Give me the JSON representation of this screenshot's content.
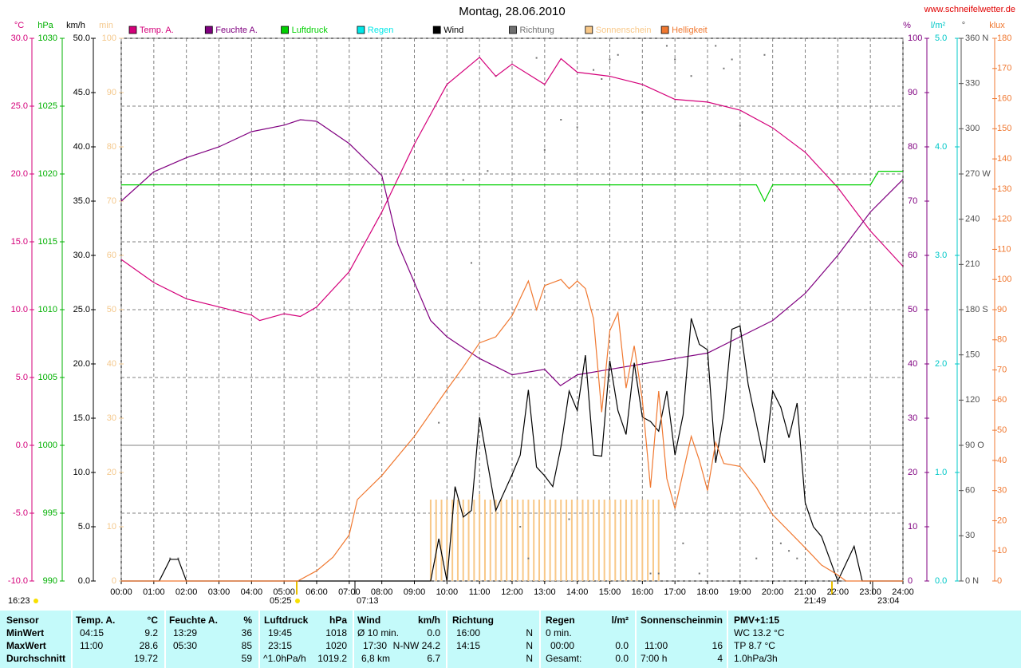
{
  "chart_data": {
    "type": "line",
    "title": "Montag, 28.06.2010",
    "source": "www.schneifelwetter.de",
    "grid": true,
    "xlim": [
      0,
      1440
    ],
    "xticks": [
      {
        "value": 0,
        "label": "00:00"
      },
      {
        "value": 60,
        "label": "01:00"
      },
      {
        "value": 120,
        "label": "02:00"
      },
      {
        "value": 180,
        "label": "03:00"
      },
      {
        "value": 240,
        "label": "04:00"
      },
      {
        "value": 300,
        "label": "05:00"
      },
      {
        "value": 360,
        "label": "06:00"
      },
      {
        "value": 420,
        "label": "07:00"
      },
      {
        "value": 480,
        "label": "08:00"
      },
      {
        "value": 540,
        "label": "09:00"
      },
      {
        "value": 600,
        "label": "10:00"
      },
      {
        "value": 660,
        "label": "11:00"
      },
      {
        "value": 720,
        "label": "12:00"
      },
      {
        "value": 780,
        "label": "13:00"
      },
      {
        "value": 840,
        "label": "14:00"
      },
      {
        "value": 900,
        "label": "15:00"
      },
      {
        "value": 960,
        "label": "16:00"
      },
      {
        "value": 1020,
        "label": "17:00"
      },
      {
        "value": 1080,
        "label": "18:00"
      },
      {
        "value": 1140,
        "label": "19:00"
      },
      {
        "value": 1200,
        "label": "20:00"
      },
      {
        "value": 1260,
        "label": "21:00"
      },
      {
        "value": 1320,
        "label": "22:00"
      },
      {
        "value": 1380,
        "label": "23:00"
      },
      {
        "value": 1440,
        "label": "24:00"
      }
    ],
    "axes": [
      {
        "unit": "°C",
        "side": "left",
        "color": "#d4007a",
        "lim": [
          -10,
          30
        ],
        "ticks": [
          {
            "value": -10,
            "label": "-10.0"
          },
          {
            "value": -5,
            "label": "-5.0"
          },
          {
            "value": 0,
            "label": "0.0"
          },
          {
            "value": 5,
            "label": "5.0"
          },
          {
            "value": 10,
            "label": "10.0"
          },
          {
            "value": 15,
            "label": "15.0"
          },
          {
            "value": 20,
            "label": "20.0"
          },
          {
            "value": 25,
            "label": "25.0"
          },
          {
            "value": 30,
            "label": "30.0"
          }
        ]
      },
      {
        "unit": "hPa",
        "side": "left",
        "color": "#00b000",
        "lim": [
          990,
          1030
        ],
        "ticks": [
          990,
          995,
          1000,
          1005,
          1010,
          1015,
          1020,
          1025,
          1030
        ]
      },
      {
        "unit": "km/h",
        "side": "left",
        "color": "#000000",
        "lim": [
          0,
          50
        ],
        "ticks": [
          {
            "value": 0,
            "label": "0.0"
          },
          {
            "value": 5,
            "label": "5.0"
          },
          {
            "value": 10,
            "label": "10.0"
          },
          {
            "value": 15,
            "label": "15.0"
          },
          {
            "value": 20,
            "label": "20.0"
          },
          {
            "value": 25,
            "label": "25.0"
          },
          {
            "value": 30,
            "label": "30.0"
          },
          {
            "value": 35,
            "label": "35.0"
          },
          {
            "value": 40,
            "label": "40.0"
          },
          {
            "value": 45,
            "label": "45.0"
          },
          {
            "value": 50,
            "label": "50.0"
          }
        ]
      },
      {
        "unit": "min",
        "side": "left",
        "color": "#f4c88c",
        "lim": [
          0,
          100
        ],
        "ticks": [
          0,
          10,
          20,
          30,
          40,
          50,
          60,
          70,
          80,
          90,
          100
        ]
      },
      {
        "unit": "%",
        "side": "right",
        "color": "#800080",
        "lim": [
          0,
          100
        ],
        "ticks": [
          0,
          10,
          20,
          30,
          40,
          50,
          60,
          70,
          80,
          90,
          100
        ]
      },
      {
        "unit": "l/m²",
        "side": "right",
        "color": "#00c8c8",
        "lim": [
          0,
          5
        ],
        "ticks": [
          {
            "value": 0,
            "label": "0.0"
          },
          {
            "value": 1,
            "label": "1.0"
          },
          {
            "value": 2,
            "label": "2.0"
          },
          {
            "value": 3,
            "label": "3.0"
          },
          {
            "value": 4,
            "label": "4.0"
          },
          {
            "value": 5,
            "label": "5.0"
          }
        ]
      },
      {
        "unit": "°",
        "side": "right",
        "color": "#505050",
        "lim": [
          0,
          360
        ],
        "ticks": [
          {
            "value": 0,
            "label": "0 N"
          },
          30,
          60,
          {
            "value": 90,
            "label": "90 O"
          },
          120,
          150,
          {
            "value": 180,
            "label": "180 S"
          },
          210,
          240,
          {
            "value": 270,
            "label": "270 W"
          },
          300,
          330,
          {
            "value": 360,
            "label": "360 N"
          }
        ]
      },
      {
        "unit": "klux",
        "side": "right",
        "color": "#f07830",
        "lim": [
          0,
          180
        ],
        "ticks": [
          0,
          10,
          20,
          30,
          40,
          50,
          60,
          70,
          80,
          90,
          100,
          110,
          120,
          130,
          140,
          150,
          160,
          170,
          180
        ]
      }
    ],
    "series": [
      {
        "name": "Temp. A.",
        "type": "line",
        "axis": 0,
        "color": "#d4007a",
        "x": [
          0,
          60,
          120,
          180,
          240,
          255,
          300,
          330,
          360,
          420,
          480,
          540,
          600,
          660,
          690,
          720,
          780,
          810,
          840,
          900,
          960,
          1020,
          1080,
          1140,
          1200,
          1260,
          1320,
          1380,
          1440
        ],
        "values": [
          13.7,
          12.0,
          10.8,
          10.2,
          9.6,
          9.2,
          9.7,
          9.5,
          10.2,
          12.8,
          17.2,
          22.2,
          26.6,
          28.6,
          27.2,
          28.1,
          26.6,
          28.5,
          27.5,
          27.2,
          26.6,
          25.5,
          25.3,
          24.7,
          23.4,
          21.6,
          19.0,
          15.8,
          13.2
        ]
      },
      {
        "name": "Feuchte A.",
        "type": "line",
        "axis": 4,
        "color": "#800080",
        "x": [
          0,
          60,
          120,
          180,
          240,
          300,
          330,
          360,
          420,
          480,
          510,
          540,
          570,
          600,
          660,
          720,
          780,
          809,
          840,
          900,
          960,
          1020,
          1080,
          1140,
          1200,
          1260,
          1320,
          1380,
          1440
        ],
        "values": [
          70,
          75.4,
          78,
          80,
          82.8,
          84,
          85,
          84.7,
          80.6,
          74.7,
          62,
          55,
          48,
          45,
          41,
          38,
          39,
          36,
          38,
          39,
          40,
          41,
          42,
          45,
          48,
          53,
          60,
          68,
          74
        ]
      },
      {
        "name": "Luftdruck",
        "type": "line",
        "axis": 1,
        "color": "#00d000",
        "x": [
          0,
          1170,
          1185,
          1200,
          1380,
          1395,
          1440
        ],
        "values": [
          1019.2,
          1019.2,
          1018,
          1019.2,
          1019.2,
          1020.2,
          1020.2
        ]
      },
      {
        "name": "Regen",
        "type": "bar",
        "axis": 5,
        "color": "#00e8e8",
        "x": [],
        "values": []
      },
      {
        "name": "Wind",
        "type": "line",
        "axis": 2,
        "color": "#000000",
        "x": [
          0,
          70,
          90,
          105,
          120,
          570,
          585,
          600,
          615,
          630,
          645,
          660,
          690,
          720,
          735,
          750,
          765,
          780,
          795,
          810,
          825,
          840,
          855,
          870,
          885,
          900,
          915,
          930,
          945,
          960,
          975,
          990,
          1005,
          1020,
          1035,
          1050,
          1065,
          1080,
          1095,
          1110,
          1125,
          1140,
          1155,
          1185,
          1200,
          1215,
          1230,
          1245,
          1260,
          1275,
          1290,
          1320,
          1350,
          1365,
          1440
        ],
        "values": [
          0,
          0,
          2,
          2,
          0,
          0,
          3.9,
          0,
          8.7,
          5.9,
          6.5,
          15.1,
          6.5,
          9.8,
          11.6,
          17.6,
          10.5,
          9.7,
          8.7,
          12.4,
          17.5,
          15.7,
          20.8,
          11.6,
          11.5,
          20.3,
          15.7,
          13.5,
          20.1,
          15.1,
          14.7,
          13.8,
          17.5,
          11.6,
          15.3,
          24.2,
          21.8,
          21.3,
          10.9,
          15.3,
          23.2,
          23.5,
          18.1,
          10.9,
          17.5,
          16.0,
          13.2,
          16.4,
          7.2,
          5.0,
          4.1,
          0,
          3.2,
          0,
          0
        ]
      },
      {
        "name": "Richtung",
        "type": "scatter",
        "axis": 6,
        "color": "#707070",
        "x": [
          90,
          105,
          585,
          615,
          630,
          645,
          675,
          690,
          720,
          735,
          750,
          765,
          780,
          810,
          825,
          840,
          870,
          885,
          900,
          915,
          960,
          975,
          990,
          1005,
          1020,
          1035,
          1050,
          1065,
          1095,
          1110,
          1125,
          1140,
          1170,
          1185,
          1215,
          1230,
          1245
        ],
        "values": [
          15,
          15,
          105,
          60,
          266,
          211,
          272,
          335,
          70,
          36,
          15,
          347,
          286,
          306,
          41,
          301,
          339,
          333,
          346,
          349,
          311,
          5,
          5,
          355,
          346,
          25,
          335,
          5,
          355,
          340,
          346,
          302,
          15,
          349,
          25,
          20,
          15
        ]
      },
      {
        "name": "Sonnenschein",
        "type": "bar",
        "axis": 3,
        "color": "#f8c888",
        "x": [
          570,
          580,
          590,
          600,
          610,
          620,
          630,
          640,
          650,
          660,
          670,
          680,
          690,
          700,
          710,
          720,
          730,
          740,
          750,
          760,
          770,
          780,
          790,
          800,
          810,
          820,
          830,
          840,
          850,
          860,
          870,
          880,
          890,
          900,
          910,
          920,
          930,
          940,
          950,
          960,
          970,
          980,
          990
        ],
        "values": [
          15,
          15,
          15,
          15,
          15,
          15,
          15,
          15,
          15,
          16,
          15,
          15,
          15,
          15,
          15,
          15,
          15,
          15,
          15,
          15,
          15,
          15,
          15,
          15,
          15,
          15,
          15,
          15,
          15,
          15,
          15,
          15,
          15,
          15,
          15,
          15,
          15,
          15,
          15,
          15,
          15,
          15,
          15
        ]
      },
      {
        "name": "Helligkeit",
        "type": "line",
        "axis": 7,
        "color": "#f07830",
        "x": [
          0,
          325,
          360,
          390,
          420,
          435,
          480,
          540,
          600,
          630,
          660,
          690,
          720,
          750,
          765,
          780,
          810,
          825,
          840,
          855,
          870,
          885,
          900,
          915,
          930,
          945,
          960,
          975,
          990,
          1005,
          1020,
          1050,
          1065,
          1080,
          1095,
          1110,
          1140,
          1170,
          1200,
          1260,
          1290,
          1320,
          1335,
          1440
        ],
        "values": [
          0,
          0,
          3.4,
          7.9,
          15.3,
          27,
          35,
          48,
          63.5,
          71,
          79,
          81,
          88,
          99.5,
          90,
          98,
          100,
          97,
          99.5,
          97,
          87,
          56,
          83,
          89,
          64,
          78,
          60,
          31,
          63,
          34,
          24,
          48,
          40,
          30,
          46,
          39,
          38,
          31,
          22,
          11,
          5.3,
          2,
          0,
          0
        ]
      }
    ],
    "annotations": [
      "16:23",
      "05:25",
      "07:13",
      "21:49",
      "23:04"
    ]
  },
  "table": {
    "header": [
      "Sensor",
      "Temp. A.",
      "°C",
      "Feuchte A.",
      "%",
      "Luftdruck",
      "hPa",
      "Wind",
      "km/h",
      "Richtung",
      "Regen",
      "l/m²",
      "Sonnenschein",
      "min",
      "PMV+1:15"
    ],
    "rows": [
      [
        "MinWert",
        "04:15",
        "9.2",
        "13:29",
        "36",
        "19:45",
        "1018",
        "Ø 10 min.",
        "0.0",
        "16:00",
        "N",
        "0 min.",
        "WC 13.2 °C"
      ],
      [
        "MaxWert",
        "11:00",
        "28.6",
        "05:30",
        "85",
        "23:15",
        "1020",
        "17:30",
        "N-NW 24.2",
        "14:15",
        "N",
        "00:00",
        "0.0",
        "11:00",
        "16",
        "TP 8.7 °C"
      ],
      [
        "Durchschnitt",
        "19.72",
        "59",
        "^1.0hPa/h",
        "1019.2",
        "6,8 km",
        "6.7",
        "N",
        "Gesamt:",
        "0.0",
        "7:00 h",
        "4",
        "1.0hPa/3h"
      ]
    ]
  }
}
